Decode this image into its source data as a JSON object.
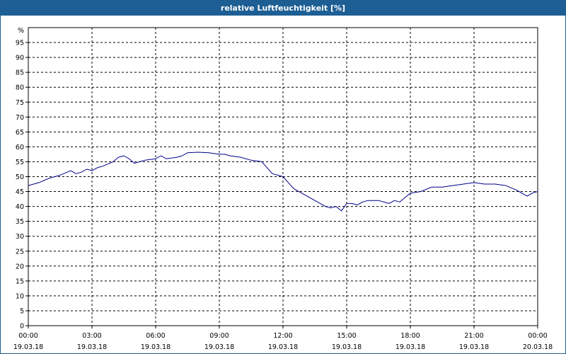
{
  "chart_data": {
    "type": "line",
    "title": "relative Luftfeuchtigkeit [%]",
    "ylabel": "%",
    "ylim": [
      0,
      100
    ],
    "y_ticks": [
      0,
      5,
      10,
      15,
      20,
      25,
      30,
      35,
      40,
      45,
      50,
      55,
      60,
      65,
      70,
      75,
      80,
      85,
      90,
      95
    ],
    "xlim": [
      "19.03.18 00:00",
      "20.03.18 00:00"
    ],
    "x_ticks": [
      {
        "time": "00:00",
        "date": "19.03.18"
      },
      {
        "time": "03:00",
        "date": "19.03.18"
      },
      {
        "time": "06:00",
        "date": "19.03.18"
      },
      {
        "time": "09:00",
        "date": "19.03.18"
      },
      {
        "time": "12:00",
        "date": "19.03.18"
      },
      {
        "time": "15:00",
        "date": "19.03.18"
      },
      {
        "time": "18:00",
        "date": "19.03.18"
      },
      {
        "time": "21:00",
        "date": "19.03.18"
      },
      {
        "time": "00:00",
        "date": "20.03.18"
      }
    ],
    "grid": true,
    "line_color": "#00008b",
    "series": [
      {
        "x": [
          "00:00",
          "00:30",
          "01:00",
          "01:30",
          "02:00",
          "02:15",
          "02:30",
          "02:45",
          "03:00",
          "03:15",
          "03:30",
          "04:00",
          "04:15",
          "04:30",
          "04:45",
          "05:00",
          "05:15",
          "05:30",
          "06:00",
          "06:15",
          "06:30",
          "07:00",
          "07:15",
          "07:30",
          "08:00",
          "08:30",
          "09:00",
          "09:15",
          "09:30",
          "10:00",
          "10:30",
          "11:00",
          "11:15",
          "11:30",
          "11:45",
          "12:00",
          "12:15",
          "12:30",
          "13:00",
          "13:30",
          "14:00",
          "14:15",
          "14:30",
          "14:45",
          "15:00",
          "15:15",
          "15:30",
          "15:45",
          "16:00",
          "16:30",
          "17:00",
          "17:15",
          "17:30",
          "17:45",
          "18:00",
          "18:30",
          "19:00",
          "19:30",
          "20:00",
          "20:30",
          "21:00",
          "21:30",
          "22:00",
          "22:30",
          "23:00",
          "23:15",
          "23:30",
          "23:45",
          "00:00"
        ],
        "values": [
          47,
          48,
          49.5,
          50.5,
          52,
          51,
          51.5,
          52.5,
          52,
          53,
          53.5,
          55,
          56.5,
          57,
          56,
          54.5,
          55,
          55.5,
          56,
          57,
          56,
          56.5,
          57,
          58,
          58.2,
          58,
          57.5,
          57.5,
          57,
          56.5,
          55.5,
          55,
          53,
          51,
          50.5,
          50,
          48,
          46,
          44,
          42,
          40,
          39.5,
          40,
          38.5,
          41,
          41,
          40.5,
          41.5,
          42,
          42,
          41,
          42,
          41.5,
          43,
          44.5,
          45,
          46.5,
          46.5,
          47,
          47.5,
          48,
          47.5,
          47.5,
          47,
          45.5,
          44.5,
          43.5,
          44.5,
          45
        ]
      }
    ]
  }
}
